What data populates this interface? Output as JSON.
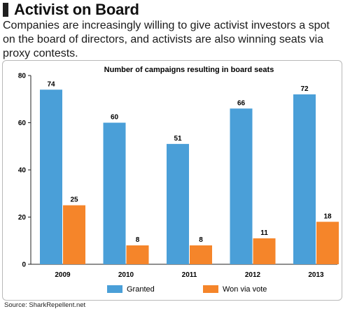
{
  "header": {
    "title": "Activist on Board",
    "subtitle": "Companies are increasingly willing to give activist investors a spot on the board of directors, and activists are also winning seats via proxy contests."
  },
  "source": "Source: SharkRepellent.net",
  "chart_data": {
    "type": "bar",
    "title": "Number of campaigns resulting in board seats",
    "categories": [
      "2009",
      "2010",
      "2011",
      "2012",
      "2013"
    ],
    "series": [
      {
        "name": "Granted",
        "values": [
          74,
          60,
          51,
          66,
          72
        ],
        "color": "#4a9fd8"
      },
      {
        "name": "Won via vote",
        "values": [
          25,
          8,
          8,
          11,
          18
        ],
        "color": "#f5852a"
      }
    ],
    "ylim": [
      0,
      80
    ],
    "yticks": [
      0,
      20,
      40,
      60,
      80
    ],
    "grid": false,
    "legend": "bottom"
  }
}
